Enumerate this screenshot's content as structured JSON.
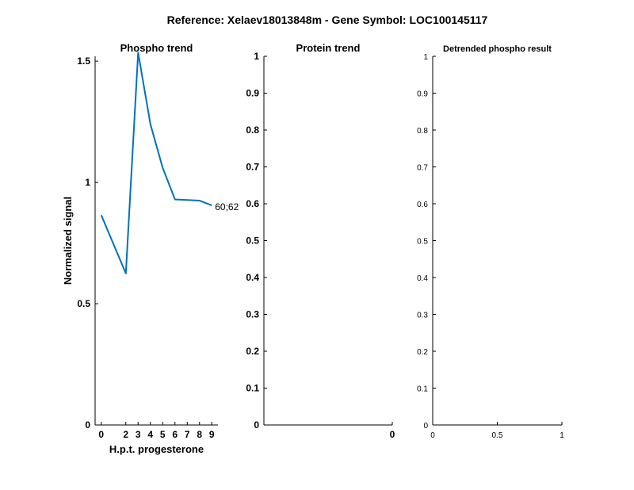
{
  "figure_title": "Reference:  Xelaev18013848m - Gene Symbol:  LOC100145117",
  "chart_data": [
    {
      "type": "line",
      "title": "Phospho trend",
      "xlabel": "H.p.t. progesterone",
      "ylabel": "Normalized signal",
      "xlim": [
        -0.5,
        9.5
      ],
      "ylim": [
        0,
        1.52
      ],
      "x": [
        0,
        2,
        3,
        4,
        5,
        6,
        8,
        9
      ],
      "x_tick_labels": [
        "0",
        "2",
        "3",
        "4",
        "5",
        "6",
        "7",
        "8",
        "9"
      ],
      "x_tick_positions": [
        0,
        2,
        3,
        4,
        5,
        6,
        7,
        8,
        9
      ],
      "y_ticks": [
        0,
        0.5,
        1,
        1.5
      ],
      "y_tick_labels": [
        "0",
        "0.5",
        "1",
        "1.5"
      ],
      "series": [
        {
          "name": "60;62",
          "color": "#0072BD",
          "values": [
            0.865,
            0.625,
            1.535,
            1.24,
            1.06,
            0.93,
            0.925,
            0.905
          ]
        }
      ],
      "annotation": "60;62"
    },
    {
      "type": "line",
      "title": "Protein trend",
      "xlabel": "",
      "ylabel": "",
      "xlim": [
        -1,
        0
      ],
      "ylim": [
        0,
        1
      ],
      "y_ticks": [
        0,
        0.1,
        0.2,
        0.3,
        0.4,
        0.5,
        0.6,
        0.7,
        0.8,
        0.9,
        1
      ],
      "y_tick_labels": [
        "0",
        "0.1",
        "0.2",
        "0.3",
        "0.4",
        "0.5",
        "0.6",
        "0.7",
        "0.8",
        "0.9",
        "1"
      ],
      "x_ticks": [
        0
      ],
      "x_tick_labels": [
        "0"
      ],
      "series": []
    },
    {
      "type": "line",
      "title": "Detrended phospho result",
      "xlabel": "",
      "ylabel": "",
      "xlim": [
        0,
        1
      ],
      "ylim": [
        0,
        1
      ],
      "y_ticks": [
        0,
        0.1,
        0.2,
        0.3,
        0.4,
        0.5,
        0.6,
        0.7,
        0.8,
        0.9,
        1
      ],
      "y_tick_labels": [
        "0",
        "0.1",
        "0.2",
        "0.3",
        "0.4",
        "0.5",
        "0.6",
        "0.7",
        "0.8",
        "0.9",
        "1"
      ],
      "x_ticks": [
        0,
        0.5,
        1
      ],
      "x_tick_labels": [
        "0",
        "0.5",
        "1"
      ],
      "series": []
    }
  ]
}
